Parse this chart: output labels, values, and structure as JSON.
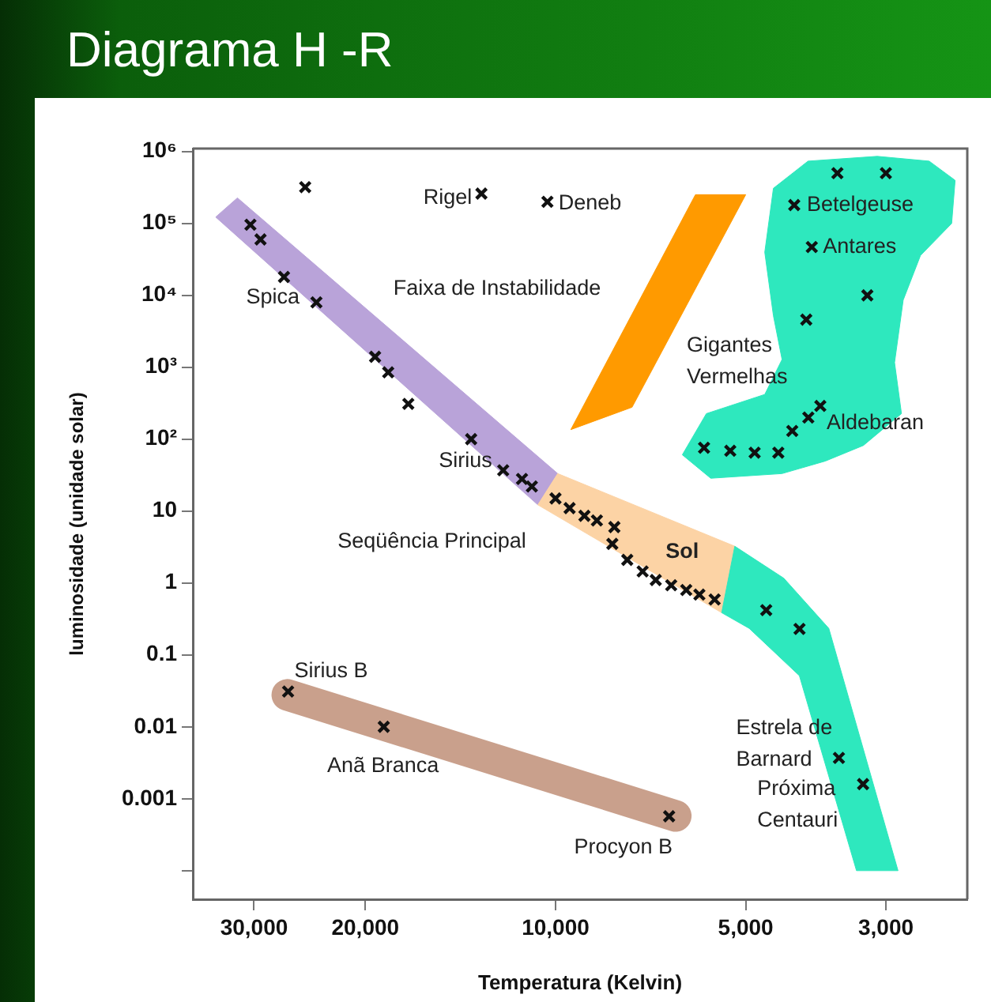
{
  "chart_data": {
    "type": "scatter",
    "title": "Diagrama H -R",
    "xlabel": "Temperatura (Kelvin)",
    "ylabel": "luminosidade (unidade solar)",
    "log": "xy",
    "grid": false,
    "legend": false,
    "marker": "cross",
    "xlim": [
      37500,
      2230
    ],
    "ylim": [
      4e-05,
      1100000
    ],
    "xticks": [
      {
        "value": 30000,
        "label": "30,000"
      },
      {
        "value": 20000,
        "label": "20,000"
      },
      {
        "value": 10000,
        "label": "10,000"
      },
      {
        "value": 5000,
        "label": "5,000"
      },
      {
        "value": 3000,
        "label": "3,000"
      }
    ],
    "yticks": [
      {
        "value": 0.0001,
        "label": null
      },
      0.001,
      0.01,
      0.1,
      1,
      10,
      {
        "value": 100,
        "label": "10²"
      },
      {
        "value": 1000,
        "label": "10³"
      },
      {
        "value": 10000,
        "label": "10⁴"
      },
      {
        "value": 100000,
        "label": "10⁵"
      },
      {
        "value": 1000000,
        "label": "10⁶"
      }
    ],
    "series": [
      {
        "type": "scatter",
        "color": "#111111",
        "x": [
          24900,
          13100,
          10300,
          30400,
          29300,
          26900,
          23900,
          19300,
          18400,
          17100,
          13600,
          12100,
          11300,
          10900,
          10000,
          9500,
          9000,
          8600,
          8070,
          8130,
          7700,
          7280,
          6940,
          6560,
          6210,
          5920,
          5600,
          4640,
          4110,
          3560,
          3260,
          26500,
          18700,
          6610,
          3580,
          3000,
          4190,
          3930,
          3210,
          4010,
          3810,
          3980,
          4220,
          5820,
          5290,
          4840,
          4440
        ],
        "values": [
          320000,
          260000,
          200000,
          96000,
          60000,
          18000,
          8000,
          1400,
          850,
          310,
          100,
          37,
          28,
          22,
          15,
          11,
          8.6,
          7.4,
          6.0,
          3.5,
          2.1,
          1.45,
          1.1,
          0.93,
          0.8,
          0.69,
          0.59,
          0.42,
          0.23,
          0.0037,
          0.0016,
          0.031,
          0.01,
          0.00057,
          500000,
          500000,
          180000,
          47000,
          10000,
          4600,
          290,
          200,
          130,
          76,
          69,
          65,
          65
        ]
      }
    ],
    "annotations": [
      {
        "text": "Rigel",
        "x": 13100,
        "y": 260000
      },
      {
        "text": "Deneb",
        "x": 10300,
        "y": 200000
      },
      {
        "text": "Betelgeuse",
        "x": 4190,
        "y": 180000
      },
      {
        "text": "Antares",
        "x": 3930,
        "y": 47000
      },
      {
        "text": "Aldebaran",
        "x": 3810,
        "y": 290
      },
      {
        "text": "Spica",
        "x": 26900,
        "y": 18000
      },
      {
        "text": "Sirius",
        "x": 12100,
        "y": 37
      },
      {
        "text": "Sol",
        "x": 6560,
        "y": 0.93
      },
      {
        "text": "Sirius B",
        "x": 26500,
        "y": 0.031
      },
      {
        "text": "Estrela de\nBarnard",
        "x": 3560,
        "y": 0.0037
      },
      {
        "text": "Próxima\nCentauri",
        "x": 3260,
        "y": 0.0016
      },
      {
        "text": "Procyon B",
        "x": 6610,
        "y": 0.00057
      },
      "Faixa de Instabilidade",
      "Gigantes\nVermelhas",
      "Seqüência Principal",
      "Anã Branca"
    ]
  }
}
